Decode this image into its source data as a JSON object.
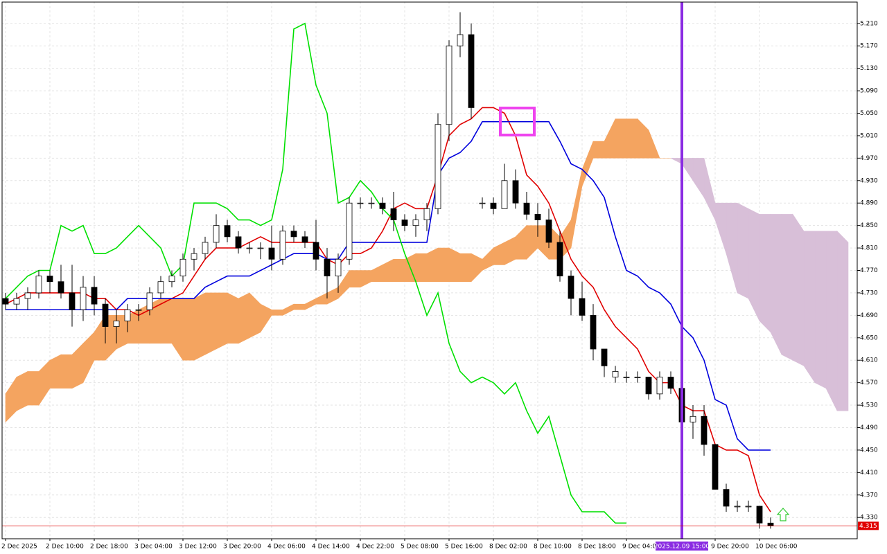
{
  "chart_data": {
    "type": "candlestick",
    "categories": [
      "2 Dec 2025",
      null,
      null,
      null,
      "2 Dec 10:00",
      null,
      null,
      null,
      "2 Dec 18:00",
      null,
      null,
      null,
      "3 Dec 04:00",
      null,
      null,
      null,
      "3 Dec 12:00",
      null,
      null,
      null,
      "3 Dec 20:00",
      null,
      null,
      null,
      "4 Dec 06:00",
      null,
      null,
      null,
      "4 Dec 14:00",
      null,
      null,
      null,
      "4 Dec 22:00",
      null,
      null,
      null,
      "5 Dec 08:00",
      null,
      null,
      null,
      "5 Dec 16:00",
      null,
      null,
      null,
      "8 Dec 02:00",
      null,
      null,
      null,
      "8 Dec 10:00",
      null,
      null,
      null,
      "8 Dec 18:00",
      null,
      null,
      null,
      "9 Dec 04:00",
      null,
      null,
      null,
      null,
      "2025.12.09 15:00",
      null,
      null,
      "9 Dec 20:00",
      null,
      null,
      null,
      "10 Dec 06:00",
      null,
      null,
      null,
      null,
      null,
      null,
      null,
      null
    ],
    "open": [
      4.72,
      4.71,
      4.72,
      4.73,
      4.76,
      4.75,
      4.73,
      4.7,
      4.74,
      4.71,
      4.67,
      4.68,
      4.7,
      4.7,
      4.73,
      4.75,
      4.76,
      4.79,
      4.8,
      4.82,
      4.85,
      4.83,
      4.81,
      4.81,
      4.81,
      4.79,
      4.84,
      4.83,
      4.82,
      4.79,
      4.76,
      4.79,
      4.89,
      4.89,
      4.89,
      4.88,
      4.86,
      4.85,
      4.86,
      4.88,
      5.03,
      5.17,
      5.19,
      4.89,
      4.89,
      4.88,
      4.93,
      4.89,
      4.87,
      4.86,
      4.82,
      4.76,
      4.72,
      4.69,
      4.63,
      4.58,
      4.58,
      4.58,
      4.58,
      4.55,
      4.58,
      4.56,
      4.5,
      4.51,
      4.46,
      4.38,
      4.35,
      4.35,
      4.35,
      4.32,
      null,
      null,
      null,
      null,
      null,
      null,
      null
    ],
    "high": [
      4.73,
      4.73,
      4.74,
      4.77,
      4.77,
      4.78,
      4.78,
      4.76,
      4.76,
      4.72,
      4.7,
      4.71,
      4.71,
      4.74,
      4.76,
      4.77,
      4.8,
      4.81,
      4.83,
      4.87,
      4.86,
      4.84,
      4.82,
      4.82,
      4.85,
      4.85,
      4.85,
      4.84,
      4.86,
      4.81,
      4.8,
      4.9,
      4.9,
      4.9,
      4.9,
      4.91,
      4.87,
      4.87,
      4.89,
      5.05,
      5.18,
      5.23,
      5.21,
      4.9,
      4.9,
      4.96,
      4.95,
      4.91,
      4.89,
      4.88,
      4.84,
      4.77,
      4.75,
      4.71,
      4.63,
      4.6,
      4.59,
      4.59,
      4.58,
      4.59,
      4.59,
      4.56,
      4.53,
      4.53,
      4.46,
      4.39,
      4.36,
      4.36,
      4.35,
      4.33,
      null,
      null,
      null,
      null,
      null,
      null,
      null
    ],
    "low": [
      4.7,
      4.7,
      4.7,
      4.72,
      4.73,
      4.72,
      4.67,
      4.68,
      4.69,
      4.64,
      4.64,
      4.66,
      4.68,
      4.69,
      4.72,
      4.74,
      4.75,
      4.77,
      4.79,
      4.81,
      4.82,
      4.8,
      4.8,
      4.79,
      4.77,
      4.78,
      4.82,
      4.81,
      4.77,
      4.72,
      4.73,
      4.78,
      4.88,
      4.88,
      4.87,
      4.84,
      4.84,
      4.83,
      4.84,
      4.87,
      5.0,
      5.15,
      5.04,
      4.88,
      4.87,
      4.88,
      4.88,
      4.86,
      4.83,
      4.81,
      4.75,
      4.69,
      4.68,
      4.61,
      4.58,
      4.57,
      4.57,
      4.57,
      4.54,
      4.54,
      4.55,
      4.48,
      4.47,
      4.44,
      4.38,
      4.34,
      4.34,
      4.34,
      4.31,
      4.31,
      null,
      null,
      null,
      null,
      null,
      null,
      null
    ],
    "close": [
      4.71,
      4.72,
      4.73,
      4.76,
      4.75,
      4.73,
      4.7,
      4.74,
      4.71,
      4.67,
      4.68,
      4.7,
      4.7,
      4.73,
      4.75,
      4.76,
      4.79,
      4.8,
      4.82,
      4.85,
      4.83,
      4.81,
      4.81,
      4.81,
      4.79,
      4.84,
      4.83,
      4.82,
      4.79,
      4.76,
      4.79,
      4.89,
      4.89,
      4.89,
      4.88,
      4.86,
      4.85,
      4.86,
      4.88,
      5.03,
      5.17,
      5.19,
      5.06,
      4.89,
      4.88,
      4.93,
      4.89,
      4.87,
      4.86,
      4.82,
      4.76,
      4.72,
      4.69,
      4.63,
      4.6,
      4.59,
      4.58,
      4.58,
      4.55,
      4.58,
      4.56,
      4.5,
      4.51,
      4.46,
      4.38,
      4.35,
      4.35,
      4.35,
      4.32,
      4.315,
      null,
      null,
      null,
      null,
      null,
      null,
      null
    ],
    "up_color": "#ffffff",
    "down_color": "#000000",
    "series": [
      {
        "color": "#e00000",
        "values": [
          4.71,
          4.72,
          4.73,
          4.73,
          4.73,
          4.73,
          4.73,
          4.73,
          4.72,
          4.72,
          4.7,
          4.7,
          4.69,
          4.7,
          4.71,
          4.72,
          4.73,
          4.76,
          4.79,
          4.81,
          4.81,
          4.81,
          4.82,
          4.83,
          4.82,
          4.82,
          4.82,
          4.82,
          4.82,
          4.79,
          4.78,
          4.8,
          4.8,
          4.81,
          4.84,
          4.88,
          4.89,
          4.88,
          4.88,
          4.94,
          5.01,
          5.03,
          5.04,
          5.06,
          5.06,
          5.05,
          5.01,
          4.94,
          4.92,
          4.89,
          4.84,
          4.79,
          4.76,
          4.74,
          4.7,
          4.67,
          4.65,
          4.63,
          4.59,
          4.57,
          4.57,
          4.53,
          4.52,
          4.52,
          4.46,
          4.45,
          4.45,
          4.44,
          4.37,
          4.34,
          null,
          null,
          null,
          null,
          null,
          null,
          null
        ]
      },
      {
        "color": "#0000dd",
        "values": [
          4.7,
          4.7,
          4.7,
          4.7,
          4.7,
          4.7,
          4.7,
          4.7,
          4.7,
          4.7,
          4.7,
          4.72,
          4.72,
          4.72,
          4.72,
          4.72,
          4.72,
          4.72,
          4.74,
          4.75,
          4.76,
          4.76,
          4.76,
          4.77,
          4.78,
          4.79,
          4.8,
          4.8,
          4.8,
          4.79,
          4.79,
          4.82,
          4.82,
          4.82,
          4.82,
          4.82,
          4.82,
          4.82,
          4.82,
          4.94,
          4.97,
          4.98,
          5.0,
          5.035,
          5.035,
          5.035,
          5.035,
          5.035,
          5.035,
          5.035,
          5.0,
          4.96,
          4.95,
          4.93,
          4.9,
          4.83,
          4.77,
          4.76,
          4.74,
          4.73,
          4.71,
          4.67,
          4.65,
          4.61,
          4.54,
          4.53,
          4.47,
          4.45,
          4.45,
          4.45,
          null,
          null,
          null,
          null,
          null,
          null,
          null
        ]
      },
      {
        "color": "#00e000",
        "values": [
          4.72,
          4.74,
          4.76,
          4.77,
          4.77,
          4.85,
          4.84,
          4.85,
          4.8,
          4.8,
          4.81,
          4.83,
          4.85,
          4.83,
          4.81,
          4.76,
          4.78,
          4.89,
          4.89,
          4.89,
          4.88,
          4.86,
          4.86,
          4.85,
          4.86,
          4.95,
          5.2,
          5.21,
          5.1,
          5.05,
          4.89,
          4.9,
          4.93,
          4.91,
          4.88,
          4.86,
          4.8,
          4.75,
          4.69,
          4.73,
          4.64,
          4.59,
          4.57,
          4.58,
          4.57,
          4.55,
          4.57,
          4.52,
          4.48,
          4.51,
          4.44,
          4.37,
          4.34,
          4.34,
          4.34,
          4.32,
          4.32,
          null,
          null,
          null,
          null,
          null,
          null,
          null,
          null,
          null,
          null,
          null,
          null,
          null,
          null,
          null,
          null,
          null,
          null,
          null,
          null
        ]
      }
    ],
    "cloud": {
      "up_color": "#f4a460",
      "down_color": "#d8bfd8",
      "senkou_a": [
        4.55,
        4.58,
        4.59,
        4.59,
        4.61,
        4.62,
        4.62,
        4.64,
        4.66,
        4.69,
        4.69,
        4.69,
        4.7,
        4.71,
        4.72,
        4.72,
        4.72,
        4.72,
        4.73,
        4.73,
        4.73,
        4.72,
        4.73,
        4.71,
        4.7,
        4.7,
        4.71,
        4.71,
        4.72,
        4.73,
        4.74,
        4.77,
        4.77,
        4.77,
        4.78,
        4.79,
        4.79,
        4.8,
        4.8,
        4.81,
        4.81,
        4.8,
        4.8,
        4.79,
        4.81,
        4.82,
        4.83,
        4.85,
        4.85,
        4.85,
        4.83,
        4.86,
        4.95,
        5.0,
        5.0,
        5.04,
        5.04,
        5.04,
        5.02,
        4.97,
        4.97,
        4.96,
        4.93,
        4.9,
        4.86,
        4.8,
        4.73,
        4.72,
        4.68,
        4.66,
        4.62,
        4.61,
        4.6,
        4.57,
        4.56,
        4.52,
        4.52
      ],
      "senkou_b": [
        4.5,
        4.52,
        4.53,
        4.53,
        4.56,
        4.56,
        4.56,
        4.57,
        4.61,
        4.61,
        4.63,
        4.64,
        4.64,
        4.64,
        4.64,
        4.64,
        4.61,
        4.61,
        4.62,
        4.63,
        4.64,
        4.64,
        4.65,
        4.66,
        4.69,
        4.69,
        4.7,
        4.7,
        4.71,
        4.71,
        4.72,
        4.74,
        4.74,
        4.75,
        4.75,
        4.75,
        4.75,
        4.75,
        4.75,
        4.75,
        4.75,
        4.75,
        4.75,
        4.77,
        4.78,
        4.78,
        4.79,
        4.79,
        4.81,
        4.79,
        4.79,
        4.81,
        4.92,
        4.97,
        4.97,
        4.97,
        4.97,
        4.97,
        4.97,
        4.97,
        4.97,
        4.97,
        4.97,
        4.97,
        4.89,
        4.89,
        4.89,
        4.88,
        4.87,
        4.87,
        4.87,
        4.87,
        4.84,
        4.84,
        4.84,
        4.84,
        4.82
      ]
    },
    "ylim": [
      4.292,
      5.248
    ],
    "yticks": [
      {
        "value": 4.33,
        "label": "4.330"
      },
      {
        "value": 4.37,
        "label": "4.370"
      },
      {
        "value": 4.41,
        "label": "4.410"
      },
      {
        "value": 4.45,
        "label": "4.450"
      },
      {
        "value": 4.49,
        "label": "4.490"
      },
      {
        "value": 4.53,
        "label": "4.530"
      },
      {
        "value": 4.57,
        "label": "4.570"
      },
      {
        "value": 4.61,
        "label": "4.610"
      },
      {
        "value": 4.65,
        "label": "4.650"
      },
      {
        "value": 4.69,
        "label": "4.690"
      },
      {
        "value": 4.73,
        "label": "4.730"
      },
      {
        "value": 4.77,
        "label": "4.770"
      },
      {
        "value": 4.81,
        "label": "4.810"
      },
      {
        "value": 4.85,
        "label": "4.850"
      },
      {
        "value": 4.89,
        "label": "4.890"
      },
      {
        "value": 4.93,
        "label": "4.930"
      },
      {
        "value": 4.97,
        "label": "4.970"
      },
      {
        "value": 5.01,
        "label": "5.010"
      },
      {
        "value": 5.05,
        "label": "5.050"
      },
      {
        "value": 5.09,
        "label": "5.090"
      },
      {
        "value": 5.13,
        "label": "5.130"
      },
      {
        "value": 5.17,
        "label": "5.170"
      },
      {
        "value": 5.21,
        "label": "5.210"
      }
    ],
    "grid": true,
    "last_price": 4.315,
    "last_price_color": "#e00000",
    "crosshair": {
      "index": 61,
      "color": "#8a2be2"
    }
  }
}
